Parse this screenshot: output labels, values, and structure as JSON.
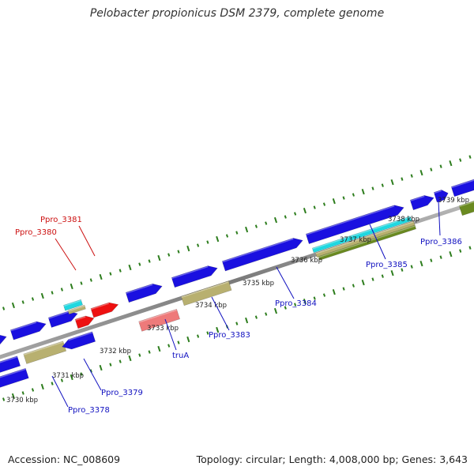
{
  "title": "Pelobacter propionicus DSM 2379, complete genome",
  "accession": "Accession: NC_008609",
  "summary": "Topology: circular; Length: 4,008,000 bp; Genes: 3,643",
  "colors": {
    "background": "#ffffff",
    "backbone": "#8a8a8a",
    "gene_blue": "#1a10e0",
    "gene_red": "#ee1010",
    "gene_cyan": "#20d8e0",
    "gene_olive": "#b8b070",
    "gene_green": "#6a8a20",
    "gene_pink": "#ee7a7a",
    "tick_green": "#2d7d1d",
    "label_blue": "#1010c0",
    "label_red": "#cc1010"
  },
  "scale_labels": [
    "3730 kbp",
    "3731 kbp",
    "3732 kbp",
    "3733 kbp",
    "3734 kbp",
    "3735 kbp",
    "3736 kbp",
    "3737 kbp",
    "3738 kbp",
    "3739 kbp"
  ],
  "gene_labels": [
    {
      "name": "Ppro_3381",
      "color": "red"
    },
    {
      "name": "Ppro_3380",
      "color": "red"
    },
    {
      "name": "Ppro_3378",
      "color": "blue"
    },
    {
      "name": "Ppro_3379",
      "color": "blue"
    },
    {
      "name": "truA",
      "color": "blue"
    },
    {
      "name": "Ppro_3383",
      "color": "blue"
    },
    {
      "name": "Ppro_3384",
      "color": "blue"
    },
    {
      "name": "Ppro_3385",
      "color": "blue"
    },
    {
      "name": "Ppro_3386",
      "color": "blue"
    }
  ]
}
